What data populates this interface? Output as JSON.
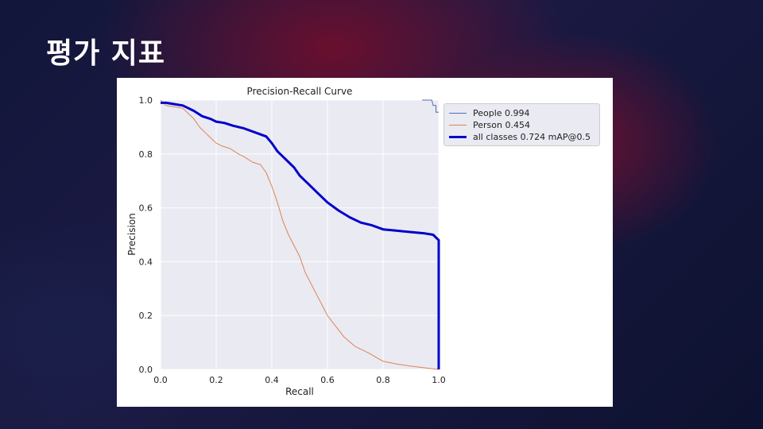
{
  "slide": {
    "title": "평가 지표"
  },
  "colors": {
    "people": "#4c72b0",
    "person": "#dd8452",
    "all_classes": "#0000cc",
    "plot_bg": "#eaeaf2",
    "grid": "#ffffff"
  },
  "chart_data": {
    "type": "line",
    "title": "Precision-Recall Curve",
    "xlabel": "Recall",
    "ylabel": "Precision",
    "xlim": [
      0,
      1
    ],
    "ylim": [
      0,
      1
    ],
    "grid": true,
    "legend_position": "outside-top-right",
    "x_ticks": [
      "0.0",
      "0.2",
      "0.4",
      "0.6",
      "0.8",
      "1.0"
    ],
    "y_ticks": [
      "0.0",
      "0.2",
      "0.4",
      "0.6",
      "0.8",
      "1.0"
    ],
    "series": [
      {
        "name": "People 0.994",
        "color": "#4c72b0",
        "x": [
          0.94,
          0.975,
          0.98,
          0.99,
          0.99,
          1.0
        ],
        "y": [
          1.0,
          1.0,
          0.98,
          0.98,
          0.955,
          0.955
        ]
      },
      {
        "name": "Person 0.454",
        "color": "#dd8452",
        "x": [
          0.0,
          0.02,
          0.05,
          0.08,
          0.1,
          0.12,
          0.14,
          0.16,
          0.18,
          0.2,
          0.22,
          0.25,
          0.28,
          0.3,
          0.33,
          0.36,
          0.38,
          0.4,
          0.42,
          0.44,
          0.46,
          0.48,
          0.5,
          0.52,
          0.55,
          0.58,
          0.6,
          0.63,
          0.66,
          0.7,
          0.75,
          0.8,
          0.85,
          0.9,
          0.95,
          1.0
        ],
        "y": [
          1.0,
          0.98,
          0.975,
          0.97,
          0.95,
          0.93,
          0.9,
          0.88,
          0.86,
          0.84,
          0.83,
          0.82,
          0.8,
          0.79,
          0.77,
          0.76,
          0.73,
          0.68,
          0.62,
          0.55,
          0.5,
          0.46,
          0.42,
          0.36,
          0.3,
          0.24,
          0.2,
          0.16,
          0.12,
          0.085,
          0.06,
          0.03,
          0.02,
          0.012,
          0.006,
          0.0
        ]
      },
      {
        "name": "all classes 0.724 mAP@0.5",
        "color": "#0000cc",
        "x": [
          0.0,
          0.02,
          0.05,
          0.08,
          0.1,
          0.12,
          0.15,
          0.18,
          0.2,
          0.23,
          0.26,
          0.3,
          0.34,
          0.38,
          0.4,
          0.42,
          0.44,
          0.46,
          0.48,
          0.5,
          0.53,
          0.56,
          0.6,
          0.64,
          0.68,
          0.72,
          0.76,
          0.8,
          0.85,
          0.9,
          0.95,
          0.98,
          0.99,
          1.0,
          1.0
        ],
        "y": [
          0.99,
          0.99,
          0.985,
          0.98,
          0.97,
          0.96,
          0.94,
          0.93,
          0.92,
          0.915,
          0.905,
          0.895,
          0.88,
          0.865,
          0.84,
          0.81,
          0.79,
          0.77,
          0.75,
          0.72,
          0.69,
          0.66,
          0.62,
          0.59,
          0.565,
          0.545,
          0.535,
          0.52,
          0.515,
          0.51,
          0.505,
          0.5,
          0.49,
          0.48,
          0.0
        ]
      }
    ]
  }
}
